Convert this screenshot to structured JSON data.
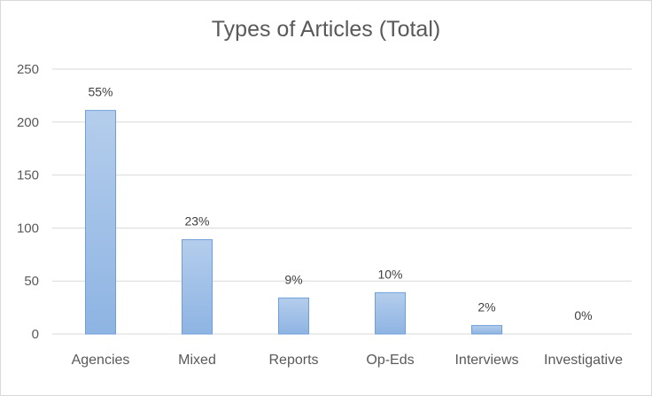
{
  "chart_data": {
    "type": "bar",
    "title": "Types of Articles (Total)",
    "categories": [
      "Agencies",
      "Mixed",
      "Reports",
      "Op-Eds",
      "Interviews",
      "Investigative"
    ],
    "values": [
      211,
      89,
      34,
      39,
      8,
      0
    ],
    "data_labels": [
      "55%",
      "23%",
      "9%",
      "10%",
      "2%",
      "0%"
    ],
    "ylim": [
      0,
      250
    ],
    "yticks": [
      "0",
      "50",
      "100",
      "150",
      "200",
      "250"
    ],
    "grid": true,
    "legend": "none",
    "colors": {
      "bar_top": "#b4cdec",
      "bar_bottom": "#8eb4e3",
      "bar_stroke": "#6f9fd8",
      "grid": "#d9d9d9",
      "text": "#595959"
    }
  }
}
